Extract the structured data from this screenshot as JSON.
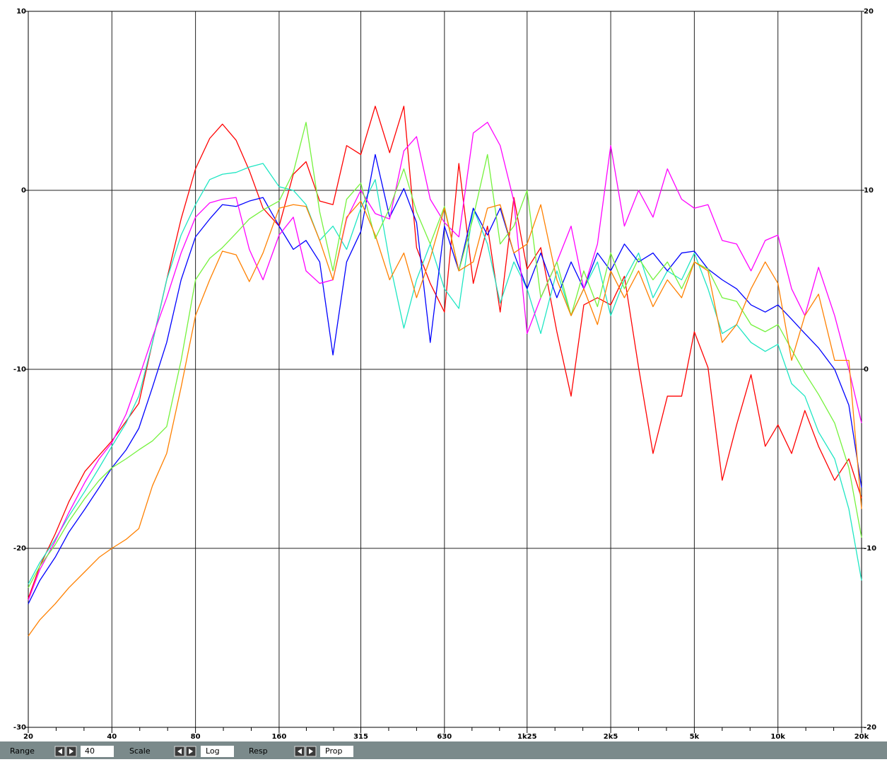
{
  "chart_data": {
    "type": "line",
    "xlim": [
      20,
      20000
    ],
    "xlog": true,
    "xticks": [
      20,
      40,
      80,
      160,
      315,
      630,
      {
        "value": 1250,
        "label": "1k25"
      },
      {
        "value": 2500,
        "label": "2k5"
      },
      {
        "value": 5000,
        "label": "5k"
      },
      {
        "value": 10000,
        "label": "10k"
      },
      {
        "value": 20000,
        "label": "20k"
      }
    ],
    "ylim": [
      -30,
      10
    ],
    "yticks": [
      -30,
      -20,
      -10,
      0,
      10
    ],
    "y2lim": [
      -20,
      20
    ],
    "y2ticks": [
      -20,
      -10,
      0,
      10,
      20
    ],
    "grid": true,
    "x": [
      20,
      22,
      25,
      28,
      32,
      36,
      40,
      45,
      50,
      56,
      63,
      71,
      80,
      90,
      100,
      112,
      125,
      140,
      160,
      180,
      200,
      224,
      250,
      280,
      315,
      355,
      400,
      450,
      500,
      560,
      630,
      710,
      800,
      900,
      1000,
      1120,
      1250,
      1400,
      1600,
      1800,
      2000,
      2240,
      2500,
      2800,
      3150,
      3550,
      4000,
      4500,
      5000,
      5600,
      6300,
      7100,
      8000,
      9000,
      10000,
      11200,
      12500,
      14000,
      16000,
      18000,
      20000
    ],
    "series": [
      {
        "color": "#ff0000",
        "values": [
          -22.8,
          -21.0,
          -19.2,
          -17.4,
          -15.7,
          -14.8,
          -14.0,
          -12.9,
          -11.9,
          -8.5,
          -5,
          -1.6,
          1.2,
          2.9,
          3.7,
          2.8,
          1.1,
          -1.0,
          -2,
          0.9,
          1.6,
          -0.6,
          -0.8,
          2.5,
          2.0,
          4.7,
          2.1,
          4.7,
          -3.2,
          -5.2,
          -6.8,
          1.5,
          -5.2,
          -2,
          -6.8,
          -0.4,
          -4.4,
          -3.2,
          -7.9,
          -11.5,
          -6.4,
          -6,
          -6.4,
          -4.8,
          -9.9,
          -14.7,
          -11.5,
          -11.5,
          -7.9,
          -9.9,
          -16.2,
          -13.1,
          -10.3,
          -14.3,
          -13.1,
          -14.7,
          -12.3,
          -14.3,
          -16.2,
          -15,
          -17.2
        ]
      },
      {
        "color": "#1ee6c3",
        "values": [
          -22,
          -20.8,
          -19.5,
          -18.2,
          -16.8,
          -15.5,
          -14.3,
          -13.0,
          -11.5,
          -8.5,
          -5,
          -2.5,
          -0.8,
          0.6,
          0.9,
          1.0,
          1.3,
          1.5,
          0.2,
          0,
          -0.8,
          -2.8,
          -2.0,
          -3.3,
          -1.0,
          0.6,
          -4,
          -7.7,
          -5,
          -3,
          -5.5,
          -6.6,
          -1,
          -3,
          -6.3,
          -4,
          -5.5,
          -8,
          -4.5,
          -7,
          -5.5,
          -4,
          -7,
          -5,
          -3.5,
          -6,
          -4.5,
          -5,
          -3.5,
          -5.5,
          -8,
          -7.5,
          -8.5,
          -9,
          -8.6,
          -10.8,
          -11.5,
          -13.5,
          -15,
          -17.8,
          -21.8
        ]
      },
      {
        "color": "#0000ff",
        "values": [
          -23.1,
          -21.8,
          -20.5,
          -19.1,
          -17.8,
          -16.6,
          -15.5,
          -14.5,
          -13.3,
          -11,
          -8.5,
          -5,
          -2.6,
          -1.6,
          -0.8,
          -0.9,
          -0.6,
          -0.4,
          -2,
          -3.3,
          -2.8,
          -4,
          -9.2,
          -4,
          -2.3,
          2.0,
          -1.5,
          0.1,
          -1.8,
          -8.5,
          -2,
          -4.5,
          -1,
          -2.5,
          -1,
          -3.5,
          -5.5,
          -3.5,
          -6,
          -4,
          -5.5,
          -3.5,
          -4.5,
          -3,
          -4,
          -3.5,
          -4.5,
          -3.5,
          -3.4,
          -4.4,
          -5,
          -5.5,
          -6.4,
          -6.8,
          -6.4,
          -7.2,
          -8,
          -8.8,
          -10,
          -12,
          -16.6
        ]
      },
      {
        "color": "#ff00ff",
        "values": [
          -22.9,
          -21.2,
          -19.6,
          -18,
          -16.3,
          -15,
          -14.1,
          -12.5,
          -10.5,
          -8.2,
          -6,
          -3.5,
          -1.5,
          -0.7,
          -0.5,
          -0.4,
          -3.3,
          -5,
          -2.5,
          -1.5,
          -4.5,
          -5.2,
          -5,
          -1.6,
          0,
          -1.3,
          -1.6,
          2.2,
          3.0,
          -0.5,
          -1.8,
          -2.6,
          3.2,
          3.8,
          2.5,
          -0.6,
          -8,
          -6,
          -4,
          -2,
          -5.5,
          -3,
          2.5,
          -2,
          0,
          -1.5,
          1.2,
          -0.5,
          -1,
          -0.8,
          -2.8,
          -3,
          -4.5,
          -2.8,
          -2.5,
          -5.5,
          -7,
          -4.3,
          -7,
          -10,
          -13
        ]
      },
      {
        "color": "#74f23c",
        "values": [
          -22.2,
          -21.0,
          -19.8,
          -18.5,
          -17.2,
          -16.2,
          -15.5,
          -15,
          -14.5,
          -14,
          -13.2,
          -9.5,
          -5,
          -3.8,
          -3.2,
          -2.4,
          -1.6,
          -1.1,
          -0.6,
          1.0,
          3.8,
          -1.2,
          -4.5,
          -0.5,
          0.4,
          -2.7,
          -1,
          1.2,
          -1.2,
          -3,
          -0.9,
          -4.5,
          -1.5,
          2.0,
          -3,
          -2,
          0,
          -6,
          -4,
          -7,
          -4.5,
          -6.5,
          -3.5,
          -5.5,
          -3.8,
          -5,
          -4,
          -5.5,
          -4,
          -4.4,
          -6,
          -6.2,
          -7.5,
          -7.9,
          -7.5,
          -8.9,
          -10.2,
          -11.4,
          -13,
          -15.5,
          -19.4
        ]
      },
      {
        "color": "#ff8000",
        "values": [
          -24.9,
          -24.0,
          -23.1,
          -22.2,
          -21.3,
          -20.5,
          -20,
          -19.5,
          -18.9,
          -16.5,
          -14.7,
          -11,
          -7,
          -5,
          -3.4,
          -3.6,
          -5.1,
          -3.5,
          -1,
          -0.8,
          -0.9,
          -2.8,
          -5,
          -1.5,
          -0.6,
          -2.5,
          -5,
          -3.5,
          -6,
          -3.8,
          -1,
          -4.5,
          -4,
          -1,
          -0.8,
          -3.5,
          -3,
          -0.8,
          -5,
          -7,
          -5.5,
          -7.5,
          -4.5,
          -6,
          -4.5,
          -6.5,
          -5,
          -6,
          -4,
          -4.5,
          -8.5,
          -7.5,
          -5.5,
          -4,
          -5.2,
          -9.5,
          -7,
          -5.8,
          -9.5,
          -9.5,
          -17.8
        ]
      }
    ]
  },
  "toolbar": {
    "range_label": "Range",
    "range_value": 40,
    "scale_label": "Scale",
    "scale_value": "Log",
    "resp_label": "Resp",
    "resp_value": "Prop"
  }
}
